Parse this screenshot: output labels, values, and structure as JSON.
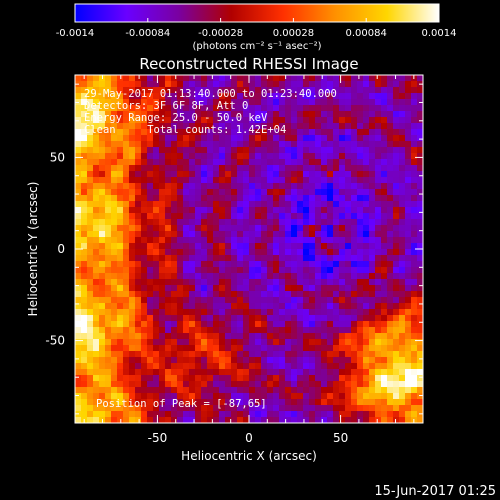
{
  "chart_data": {
    "type": "heatmap",
    "title": "Reconstructed RHESSI Image",
    "xlabel": "Heliocentric X (arcsec)",
    "ylabel": "Heliocentric Y (arcsec)",
    "xlim": [
      -95,
      95
    ],
    "ylim": [
      -95,
      95
    ],
    "x_ticks": [
      "-50",
      "0",
      "50"
    ],
    "y_ticks": [
      "50",
      "0",
      "-50"
    ],
    "colorbar": {
      "range": [
        -0.0014,
        0.0014
      ],
      "tick_labels": [
        "-0.0014",
        "-0.00084",
        "-0.00028",
        "0.00028",
        "0.00084",
        "0.0014"
      ],
      "label": "(photons cm⁻² s⁻¹ asec⁻²)",
      "colors": [
        "#0000ff",
        "#6a00ff",
        "#7a00a0",
        "#b00000",
        "#ff3000",
        "#ff9000",
        "#ffd600",
        "#ffffff"
      ]
    },
    "annotations": [
      "29-May-2017 01:13:40.000 to 01:23:40.000",
      "Detectors: 3F 6F 8F, Att 0",
      "Energy Range: 25.0 - 50.0 keV",
      "Clean     Total counts: 1.42E+04"
    ],
    "peak_label": "Position of Peak = [-87,65]",
    "peak_position": [
      -87,
      65
    ]
  },
  "footer": {
    "timestamp": "15-Jun-2017 01:25"
  }
}
